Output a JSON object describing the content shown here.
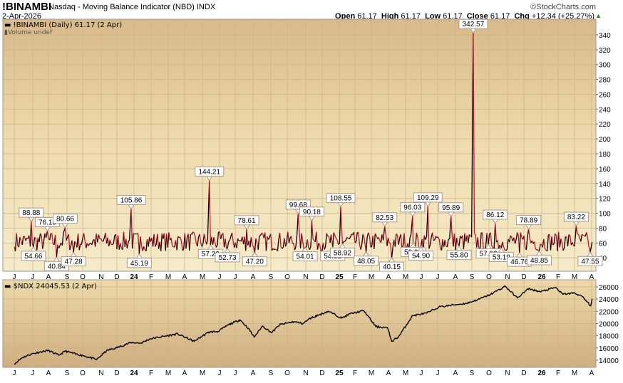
{
  "header": {
    "symbol": "!BINAMBI",
    "description": "Nasdaq - Moving Balance Indicator (NBD)",
    "exchange": "INDX",
    "date": "2-Apr-2026",
    "brand": "©StockCharts.com",
    "ohlc": {
      "open_label": "Open",
      "open": "61.17",
      "high_label": "High",
      "high": "61.17",
      "low_label": "Low",
      "low": "61.17",
      "close_label": "Close",
      "close": "61.17",
      "chg_label": "Chg",
      "chg": "+12.34 (+25.27%)"
    },
    "chg_icon": "triangle-up-icon"
  },
  "chart_data": [
    {
      "type": "line",
      "legend": "!BINAMBI (Daily) 61.17 (2 Apr)",
      "sublegend": "Volume undef",
      "ylim": [
        22,
        361
      ],
      "yticks": [
        40,
        60,
        80,
        100,
        120,
        140,
        160,
        180,
        200,
        220,
        240,
        260,
        280,
        300,
        320,
        340
      ],
      "colors": {
        "up": "#000000",
        "down": "#d0102a"
      },
      "start": {
        "date": "2023-06-01",
        "value": 55
      },
      "annotations": [
        {
          "date": "2023-07-01",
          "value": 88.88,
          "label": "88.88"
        },
        {
          "date": "2023-07-05",
          "value": 54.66,
          "label": "54.66"
        },
        {
          "date": "2023-07-30",
          "value": 76.15,
          "label": "76.15"
        },
        {
          "date": "2023-08-16",
          "value": 40.84,
          "label": "40.84"
        },
        {
          "date": "2023-09-01",
          "value": 80.66,
          "label": "80.66"
        },
        {
          "date": "2023-09-16",
          "value": 47.28,
          "label": "47.28"
        },
        {
          "date": "2023-12-28",
          "value": 105.86,
          "label": "105.86"
        },
        {
          "date": "2024-01-12",
          "value": 45.19,
          "label": "45.19"
        },
        {
          "date": "2024-05-16",
          "value": 144.21,
          "label": "144.21"
        },
        {
          "date": "2024-05-18",
          "value": 57.22,
          "label": "57.22"
        },
        {
          "date": "2024-06-18",
          "value": 52.73,
          "label": "52.73"
        },
        {
          "date": "2024-07-22",
          "value": 78.61,
          "label": "78.61"
        },
        {
          "date": "2024-08-06",
          "value": 47.2,
          "label": "47.20"
        },
        {
          "date": "2024-10-23",
          "value": 99.68,
          "label": "99.68"
        },
        {
          "date": "2024-11-05",
          "value": 54.01,
          "label": "54.01"
        },
        {
          "date": "2024-11-17",
          "value": 90.18,
          "label": "90.18"
        },
        {
          "date": "2024-12-24",
          "value": 54.52,
          "label": "54.52"
        },
        {
          "date": "2025-01-08",
          "value": 108.55,
          "label": "108.55"
        },
        {
          "date": "2025-01-11",
          "value": 58.92,
          "label": "58.92"
        },
        {
          "date": "2025-02-23",
          "value": 48.05,
          "label": "48.05"
        },
        {
          "date": "2025-03-26",
          "value": 82.53,
          "label": "82.53"
        },
        {
          "date": "2025-04-08",
          "value": 40.15,
          "label": "40.15"
        },
        {
          "date": "2025-05-15",
          "value": 96.03,
          "label": "96.03"
        },
        {
          "date": "2025-05-16",
          "value": 59.9,
          "label": "59.90"
        },
        {
          "date": "2025-05-30",
          "value": 54.9,
          "label": "54.90"
        },
        {
          "date": "2025-06-12",
          "value": 109.29,
          "label": "109.29"
        },
        {
          "date": "2025-07-23",
          "value": 95.89,
          "label": "95.89"
        },
        {
          "date": "2025-08-07",
          "value": 55.8,
          "label": "55.80"
        },
        {
          "date": "2025-09-02",
          "value": 342.57,
          "label": "342.57"
        },
        {
          "date": "2025-09-29",
          "value": 57.92,
          "label": "57.92"
        },
        {
          "date": "2025-10-11",
          "value": 86.12,
          "label": "86.12"
        },
        {
          "date": "2025-10-22",
          "value": 53.19,
          "label": "53.19"
        },
        {
          "date": "2025-11-24",
          "value": 46.76,
          "label": "46.76"
        },
        {
          "date": "2025-12-10",
          "value": 78.89,
          "label": "78.89"
        },
        {
          "date": "2025-12-29",
          "value": 48.85,
          "label": "48.85"
        },
        {
          "date": "2026-03-04",
          "value": 83.22,
          "label": "83.22"
        },
        {
          "date": "2026-03-29",
          "value": 47.55,
          "label": "47.55"
        }
      ],
      "last": {
        "date": "2026-04-02",
        "value": 61.17
      }
    },
    {
      "type": "line",
      "legend": "$NDX 24045.53 (2 Apr)",
      "ylim": [
        12830,
        27165
      ],
      "yticks": [
        14000,
        16000,
        18000,
        20000,
        22000,
        24000,
        26000
      ],
      "color": "#000000",
      "points": [
        [
          "2023-06-01",
          13400
        ],
        [
          "2023-06-15",
          14400
        ],
        [
          "2023-07-01",
          15000
        ],
        [
          "2023-07-15",
          15300
        ],
        [
          "2023-08-01",
          15600
        ],
        [
          "2023-08-20",
          14800
        ],
        [
          "2023-09-01",
          15500
        ],
        [
          "2023-09-20",
          15000
        ],
        [
          "2023-10-01",
          14800
        ],
        [
          "2023-10-27",
          14100
        ],
        [
          "2023-11-15",
          15600
        ],
        [
          "2023-12-01",
          16000
        ],
        [
          "2023-12-28",
          16900
        ],
        [
          "2024-01-15",
          16800
        ],
        [
          "2024-02-01",
          17500
        ],
        [
          "2024-03-01",
          18000
        ],
        [
          "2024-03-20",
          18300
        ],
        [
          "2024-04-19",
          17100
        ],
        [
          "2024-05-15",
          18600
        ],
        [
          "2024-06-01",
          18700
        ],
        [
          "2024-06-20",
          19800
        ],
        [
          "2024-07-10",
          20600
        ],
        [
          "2024-07-25",
          19200
        ],
        [
          "2024-08-05",
          17800
        ],
        [
          "2024-08-20",
          19600
        ],
        [
          "2024-09-06",
          18500
        ],
        [
          "2024-09-20",
          19800
        ],
        [
          "2024-10-15",
          20300
        ],
        [
          "2024-11-01",
          20000
        ],
        [
          "2024-11-15",
          20900
        ],
        [
          "2024-12-16",
          22000
        ],
        [
          "2025-01-10",
          20900
        ],
        [
          "2025-01-25",
          21600
        ],
        [
          "2025-02-19",
          22100
        ],
        [
          "2025-03-10",
          19500
        ],
        [
          "2025-03-31",
          19300
        ],
        [
          "2025-04-08",
          17100
        ],
        [
          "2025-04-20",
          17800
        ],
        [
          "2025-05-15",
          21300
        ],
        [
          "2025-06-10",
          21700
        ],
        [
          "2025-07-01",
          22700
        ],
        [
          "2025-08-01",
          23100
        ],
        [
          "2025-08-20",
          23300
        ],
        [
          "2025-09-10",
          23900
        ],
        [
          "2025-10-01",
          24700
        ],
        [
          "2025-10-29",
          26100
        ],
        [
          "2025-11-20",
          24200
        ],
        [
          "2025-12-10",
          25700
        ],
        [
          "2025-12-31",
          25200
        ],
        [
          "2026-01-28",
          25900
        ],
        [
          "2026-02-10",
          24800
        ],
        [
          "2026-03-01",
          25000
        ],
        [
          "2026-03-15",
          24400
        ],
        [
          "2026-03-30",
          22900
        ],
        [
          "2026-04-02",
          24045.53
        ]
      ]
    }
  ],
  "x_axis": {
    "labels": [
      "J",
      "J",
      "A",
      "S",
      "O",
      "N",
      "D",
      "24",
      "F",
      "M",
      "A",
      "M",
      "J",
      "J",
      "A",
      "S",
      "O",
      "N",
      "D",
      "25",
      "F",
      "M",
      "A",
      "M",
      "J",
      "J",
      "A",
      "S",
      "O",
      "N",
      "D",
      "26",
      "F",
      "M",
      "A"
    ]
  }
}
